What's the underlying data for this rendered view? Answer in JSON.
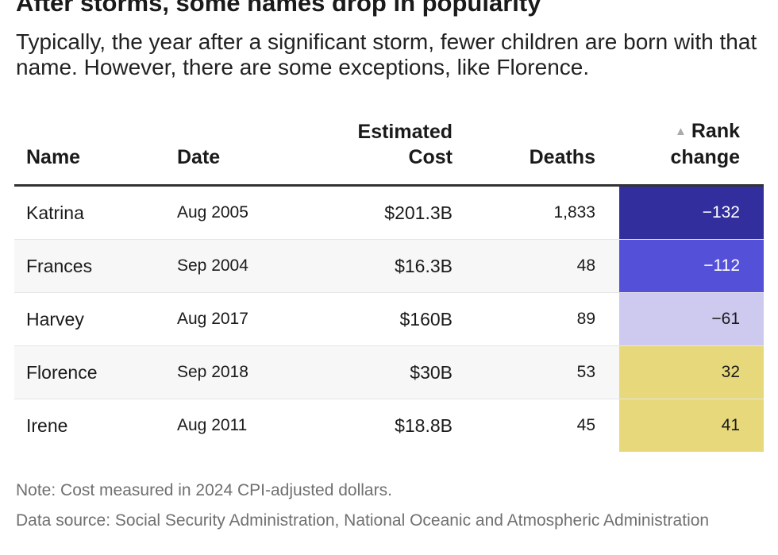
{
  "title": "After storms, some names drop in popularity",
  "subtitle": "Typically, the year after a significant storm, fewer children are born with that name. However, there are some exceptions, like Florence.",
  "chart_data": {
    "type": "table",
    "columns": [
      {
        "key": "name",
        "line1": "",
        "line2": "Name"
      },
      {
        "key": "date",
        "line1": "",
        "line2": "Date"
      },
      {
        "key": "cost",
        "line1": "Estimated",
        "line2": "Cost"
      },
      {
        "key": "deaths",
        "line1": "",
        "line2": "Deaths"
      },
      {
        "key": "rank_change",
        "line1": "Rank",
        "line2": "change",
        "sort_icon": "▲"
      }
    ],
    "rows": [
      {
        "name": "Katrina",
        "date": "Aug 2005",
        "cost": "$201.3B",
        "deaths": "1,833",
        "rank_change": "−132",
        "rank_value": -132,
        "rank_bg": "#322e9e",
        "rank_fg": "#ffffff"
      },
      {
        "name": "Frances",
        "date": "Sep 2004",
        "cost": "$16.3B",
        "deaths": "48",
        "rank_change": "−112",
        "rank_value": -112,
        "rank_bg": "#5450d8",
        "rank_fg": "#ffffff"
      },
      {
        "name": "Harvey",
        "date": "Aug 2017",
        "cost": "$160B",
        "deaths": "89",
        "rank_change": "−61",
        "rank_value": -61,
        "rank_bg": "#cdc9ef",
        "rank_fg": "#1a1a1a"
      },
      {
        "name": "Florence",
        "date": "Sep 2018",
        "cost": "$30B",
        "deaths": "53",
        "rank_change": "32",
        "rank_value": 32,
        "rank_bg": "#e8d87c",
        "rank_fg": "#1a1a1a"
      },
      {
        "name": "Irene",
        "date": "Aug 2011",
        "cost": "$18.8B",
        "deaths": "45",
        "rank_change": "41",
        "rank_value": 41,
        "rank_bg": "#e8d87c",
        "rank_fg": "#1a1a1a"
      }
    ]
  },
  "notes": {
    "note": "Note: Cost measured in 2024 CPI-adjusted dollars.",
    "source": "Data source: Social Security Administration, National Oceanic and Atmospheric Administration"
  }
}
